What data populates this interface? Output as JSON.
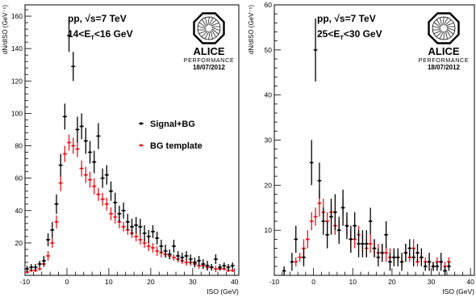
{
  "figure": {
    "logo_lettering": "ALICE",
    "logo_caption": "PERFORMANCE"
  },
  "chart_data": [
    {
      "type": "scatter",
      "title_line1": "pp, √s=7 TeV",
      "title_line2": "14<E_T<16 GeV",
      "date": "18/07/2012",
      "xlabel": "ISO (GeV)",
      "ylabel": "dN/dISO (GeV⁻¹)",
      "xlim": [
        -10,
        41
      ],
      "ylim": [
        0,
        167
      ],
      "xticks": [
        -10,
        0,
        10,
        20,
        30,
        40
      ],
      "yticks": [
        20,
        40,
        60,
        80,
        100,
        120,
        140,
        160
      ],
      "legend_placement": "center-right",
      "series": [
        {
          "name": "Signal+BG",
          "color": "#000000",
          "points": [
            {
              "x": -9.5,
              "y": 4,
              "e": 2
            },
            {
              "x": -8.5,
              "y": 5,
              "e": 2
            },
            {
              "x": -7.5,
              "y": 5,
              "e": 2
            },
            {
              "x": -6.5,
              "y": 7,
              "e": 2
            },
            {
              "x": -5.5,
              "y": 9,
              "e": 3
            },
            {
              "x": -4.5,
              "y": 22,
              "e": 4
            },
            {
              "x": -3.5,
              "y": 28,
              "e": 5
            },
            {
              "x": -2.5,
              "y": 44,
              "e": 6
            },
            {
              "x": -1.5,
              "y": 68,
              "e": 7
            },
            {
              "x": -0.5,
              "y": 98,
              "e": 8
            },
            {
              "x": 0.5,
              "y": 148,
              "e": 10
            },
            {
              "x": 1.5,
              "y": 129,
              "e": 9
            },
            {
              "x": 2.5,
              "y": 90,
              "e": 8
            },
            {
              "x": 3.5,
              "y": 92,
              "e": 8
            },
            {
              "x": 4.5,
              "y": 83,
              "e": 8
            },
            {
              "x": 5.5,
              "y": 76,
              "e": 7
            },
            {
              "x": 6.5,
              "y": 70,
              "e": 7
            },
            {
              "x": 7.5,
              "y": 86,
              "e": 8
            },
            {
              "x": 8.5,
              "y": 60,
              "e": 6
            },
            {
              "x": 9.5,
              "y": 62,
              "e": 6
            },
            {
              "x": 10.5,
              "y": 52,
              "e": 6
            },
            {
              "x": 11.5,
              "y": 45,
              "e": 6
            },
            {
              "x": 12.5,
              "y": 38,
              "e": 5
            },
            {
              "x": 13.5,
              "y": 40,
              "e": 5
            },
            {
              "x": 14.5,
              "y": 33,
              "e": 5
            },
            {
              "x": 15.5,
              "y": 30,
              "e": 5
            },
            {
              "x": 16.5,
              "y": 31,
              "e": 5
            },
            {
              "x": 17.5,
              "y": 30,
              "e": 5
            },
            {
              "x": 18.5,
              "y": 26,
              "e": 5
            },
            {
              "x": 19.5,
              "y": 24,
              "e": 4
            },
            {
              "x": 20.5,
              "y": 27,
              "e": 4
            },
            {
              "x": 21.5,
              "y": 23,
              "e": 4
            },
            {
              "x": 22.5,
              "y": 18,
              "e": 4
            },
            {
              "x": 23.5,
              "y": 15,
              "e": 4
            },
            {
              "x": 24.5,
              "y": 13,
              "e": 3
            },
            {
              "x": 25.5,
              "y": 18,
              "e": 4
            },
            {
              "x": 26.5,
              "y": 12,
              "e": 3
            },
            {
              "x": 27.5,
              "y": 11,
              "e": 3
            },
            {
              "x": 28.5,
              "y": 12,
              "e": 3
            },
            {
              "x": 29.5,
              "y": 10,
              "e": 3
            },
            {
              "x": 30.5,
              "y": 8,
              "e": 3
            },
            {
              "x": 31.5,
              "y": 9,
              "e": 3
            },
            {
              "x": 32.5,
              "y": 7,
              "e": 3
            },
            {
              "x": 33.5,
              "y": 6,
              "e": 3
            },
            {
              "x": 34.5,
              "y": 5,
              "e": 2
            },
            {
              "x": 35.5,
              "y": 10,
              "e": 3
            },
            {
              "x": 36.5,
              "y": 5,
              "e": 2
            },
            {
              "x": 37.5,
              "y": 6,
              "e": 2
            },
            {
              "x": 38.5,
              "y": 5,
              "e": 2
            },
            {
              "x": 39.5,
              "y": 6,
              "e": 2
            }
          ]
        },
        {
          "name": "BG template",
          "color": "#e8141c",
          "points": [
            {
              "x": -9.5,
              "y": 2,
              "e": 1
            },
            {
              "x": -8.5,
              "y": 3,
              "e": 1
            },
            {
              "x": -7.5,
              "y": 3,
              "e": 1
            },
            {
              "x": -6.5,
              "y": 4,
              "e": 1
            },
            {
              "x": -5.5,
              "y": 7,
              "e": 2
            },
            {
              "x": -4.5,
              "y": 12,
              "e": 3
            },
            {
              "x": -3.5,
              "y": 20,
              "e": 3
            },
            {
              "x": -2.5,
              "y": 33,
              "e": 4
            },
            {
              "x": -1.5,
              "y": 57,
              "e": 5
            },
            {
              "x": -0.5,
              "y": 75,
              "e": 5
            },
            {
              "x": 0.5,
              "y": 82,
              "e": 5
            },
            {
              "x": 1.5,
              "y": 80,
              "e": 5
            },
            {
              "x": 2.5,
              "y": 78,
              "e": 5
            },
            {
              "x": 3.5,
              "y": 66,
              "e": 5
            },
            {
              "x": 4.5,
              "y": 62,
              "e": 5
            },
            {
              "x": 5.5,
              "y": 59,
              "e": 5
            },
            {
              "x": 6.5,
              "y": 55,
              "e": 5
            },
            {
              "x": 7.5,
              "y": 50,
              "e": 4
            },
            {
              "x": 8.5,
              "y": 47,
              "e": 4
            },
            {
              "x": 9.5,
              "y": 44,
              "e": 4
            },
            {
              "x": 10.5,
              "y": 38,
              "e": 4
            },
            {
              "x": 11.5,
              "y": 36,
              "e": 4
            },
            {
              "x": 12.5,
              "y": 33,
              "e": 4
            },
            {
              "x": 13.5,
              "y": 30,
              "e": 3
            },
            {
              "x": 14.5,
              "y": 28,
              "e": 3
            },
            {
              "x": 15.5,
              "y": 26,
              "e": 3
            },
            {
              "x": 16.5,
              "y": 24,
              "e": 3
            },
            {
              "x": 17.5,
              "y": 22,
              "e": 3
            },
            {
              "x": 18.5,
              "y": 20,
              "e": 3
            },
            {
              "x": 19.5,
              "y": 18,
              "e": 3
            },
            {
              "x": 20.5,
              "y": 17,
              "e": 3
            },
            {
              "x": 21.5,
              "y": 15,
              "e": 3
            },
            {
              "x": 22.5,
              "y": 14,
              "e": 3
            },
            {
              "x": 23.5,
              "y": 13,
              "e": 2
            },
            {
              "x": 24.5,
              "y": 12,
              "e": 2
            },
            {
              "x": 25.5,
              "y": 11,
              "e": 2
            },
            {
              "x": 26.5,
              "y": 10,
              "e": 2
            },
            {
              "x": 27.5,
              "y": 9,
              "e": 2
            },
            {
              "x": 28.5,
              "y": 8,
              "e": 2
            },
            {
              "x": 29.5,
              "y": 8,
              "e": 2
            },
            {
              "x": 30.5,
              "y": 7,
              "e": 2
            },
            {
              "x": 31.5,
              "y": 6,
              "e": 2
            },
            {
              "x": 32.5,
              "y": 6,
              "e": 2
            },
            {
              "x": 33.5,
              "y": 5,
              "e": 2
            },
            {
              "x": 34.5,
              "y": 5,
              "e": 2
            },
            {
              "x": 35.5,
              "y": 4,
              "e": 2
            },
            {
              "x": 36.5,
              "y": 4,
              "e": 1
            },
            {
              "x": 37.5,
              "y": 4,
              "e": 1
            },
            {
              "x": 38.5,
              "y": 3,
              "e": 1
            },
            {
              "x": 39.5,
              "y": 3,
              "e": 1
            }
          ]
        }
      ]
    },
    {
      "type": "scatter",
      "title_line1": "pp, √s=7 TeV",
      "title_line2": "25<E_T<30 GeV",
      "date": "18/07/2012",
      "xlabel": "ISO (GeV)",
      "ylabel": "dN/dISO (GeV⁻¹)",
      "xlim": [
        -10,
        41
      ],
      "ylim": [
        0,
        60
      ],
      "xticks": [
        -10,
        0,
        10,
        20,
        30,
        40
      ],
      "yticks": [
        10,
        20,
        30,
        40,
        50,
        60
      ],
      "series": [
        {
          "name": "Signal+BG",
          "color": "#000000",
          "points": [
            {
              "x": -7.5,
              "y": 1,
              "e": 1
            },
            {
              "x": -5.5,
              "y": 3,
              "e": 2
            },
            {
              "x": -4.5,
              "y": 8,
              "e": 3
            },
            {
              "x": -2.5,
              "y": 4,
              "e": 2
            },
            {
              "x": -0.5,
              "y": 25,
              "e": 5
            },
            {
              "x": 0.5,
              "y": 50,
              "e": 7
            },
            {
              "x": 1.5,
              "y": 21,
              "e": 4
            },
            {
              "x": 2.5,
              "y": 12,
              "e": 3
            },
            {
              "x": 3.5,
              "y": 9,
              "e": 3
            },
            {
              "x": 4.5,
              "y": 13,
              "e": 4
            },
            {
              "x": 5.5,
              "y": 14,
              "e": 4
            },
            {
              "x": 6.5,
              "y": 10,
              "e": 3
            },
            {
              "x": 7.5,
              "y": 15,
              "e": 4
            },
            {
              "x": 8.5,
              "y": 11,
              "e": 3
            },
            {
              "x": 9.5,
              "y": 8,
              "e": 3
            },
            {
              "x": 10.5,
              "y": 11,
              "e": 3
            },
            {
              "x": 11.5,
              "y": 7,
              "e": 3
            },
            {
              "x": 12.5,
              "y": 7,
              "e": 3
            },
            {
              "x": 13.5,
              "y": 7,
              "e": 3
            },
            {
              "x": 14.5,
              "y": 12,
              "e": 3
            },
            {
              "x": 15.5,
              "y": 6,
              "e": 2
            },
            {
              "x": 16.5,
              "y": 4,
              "e": 2
            },
            {
              "x": 17.5,
              "y": 5,
              "e": 2
            },
            {
              "x": 18.5,
              "y": 9,
              "e": 3
            },
            {
              "x": 19.5,
              "y": 3,
              "e": 2
            },
            {
              "x": 20.5,
              "y": 4,
              "e": 2
            },
            {
              "x": 21.5,
              "y": 4,
              "e": 2
            },
            {
              "x": 22.5,
              "y": 3,
              "e": 2
            },
            {
              "x": 23.5,
              "y": 5,
              "e": 2
            },
            {
              "x": 24.5,
              "y": 6,
              "e": 2
            },
            {
              "x": 25.5,
              "y": 4,
              "e": 2
            },
            {
              "x": 26.5,
              "y": 5,
              "e": 2
            },
            {
              "x": 27.5,
              "y": 4,
              "e": 2
            },
            {
              "x": 28.5,
              "y": 2,
              "e": 1
            },
            {
              "x": 29.5,
              "y": 3,
              "e": 2
            },
            {
              "x": 30.5,
              "y": 2,
              "e": 1
            },
            {
              "x": 31.5,
              "y": 2,
              "e": 1
            },
            {
              "x": 32.5,
              "y": 3,
              "e": 2
            },
            {
              "x": 33.5,
              "y": 1,
              "e": 1
            },
            {
              "x": 34.5,
              "y": 2,
              "e": 1
            }
          ]
        },
        {
          "name": "BG template",
          "color": "#e8141c",
          "points": [
            {
              "x": -4.5,
              "y": 3,
              "e": 1
            },
            {
              "x": -3.5,
              "y": 4,
              "e": 1
            },
            {
              "x": -2.5,
              "y": 6,
              "e": 2
            },
            {
              "x": -1.5,
              "y": 8,
              "e": 2
            },
            {
              "x": -0.5,
              "y": 12,
              "e": 2
            },
            {
              "x": 0.5,
              "y": 13,
              "e": 2
            },
            {
              "x": 1.5,
              "y": 16,
              "e": 3
            },
            {
              "x": 2.5,
              "y": 14,
              "e": 3
            },
            {
              "x": 3.5,
              "y": 12,
              "e": 2
            },
            {
              "x": 4.5,
              "y": 14,
              "e": 2
            },
            {
              "x": 5.5,
              "y": 11,
              "e": 2
            },
            {
              "x": 6.5,
              "y": 10,
              "e": 2
            },
            {
              "x": 7.5,
              "y": 15,
              "e": 2
            },
            {
              "x": 8.5,
              "y": 11,
              "e": 2
            },
            {
              "x": 9.5,
              "y": 8,
              "e": 2
            },
            {
              "x": 10.5,
              "y": 8,
              "e": 2
            },
            {
              "x": 11.5,
              "y": 9,
              "e": 2
            },
            {
              "x": 12.5,
              "y": 7,
              "e": 2
            },
            {
              "x": 13.5,
              "y": 6,
              "e": 2
            },
            {
              "x": 14.5,
              "y": 7,
              "e": 2
            },
            {
              "x": 15.5,
              "y": 6,
              "e": 2
            },
            {
              "x": 16.5,
              "y": 5,
              "e": 2
            },
            {
              "x": 17.5,
              "y": 5,
              "e": 2
            },
            {
              "x": 18.5,
              "y": 5,
              "e": 2
            },
            {
              "x": 19.5,
              "y": 4,
              "e": 2
            },
            {
              "x": 20.5,
              "y": 4,
              "e": 1
            },
            {
              "x": 21.5,
              "y": 4,
              "e": 1
            },
            {
              "x": 22.5,
              "y": 3,
              "e": 1
            },
            {
              "x": 23.5,
              "y": 5,
              "e": 2
            },
            {
              "x": 24.5,
              "y": 4,
              "e": 1
            },
            {
              "x": 25.5,
              "y": 6,
              "e": 2
            },
            {
              "x": 26.5,
              "y": 3,
              "e": 1
            },
            {
              "x": 27.5,
              "y": 4,
              "e": 1
            },
            {
              "x": 28.5,
              "y": 3,
              "e": 1
            },
            {
              "x": 29.5,
              "y": 3,
              "e": 1
            },
            {
              "x": 30.5,
              "y": 2,
              "e": 1
            },
            {
              "x": 31.5,
              "y": 3,
              "e": 1
            },
            {
              "x": 32.5,
              "y": 3,
              "e": 1
            },
            {
              "x": 33.5,
              "y": 2,
              "e": 1
            },
            {
              "x": 34.5,
              "y": 3,
              "e": 1
            }
          ]
        }
      ]
    }
  ]
}
